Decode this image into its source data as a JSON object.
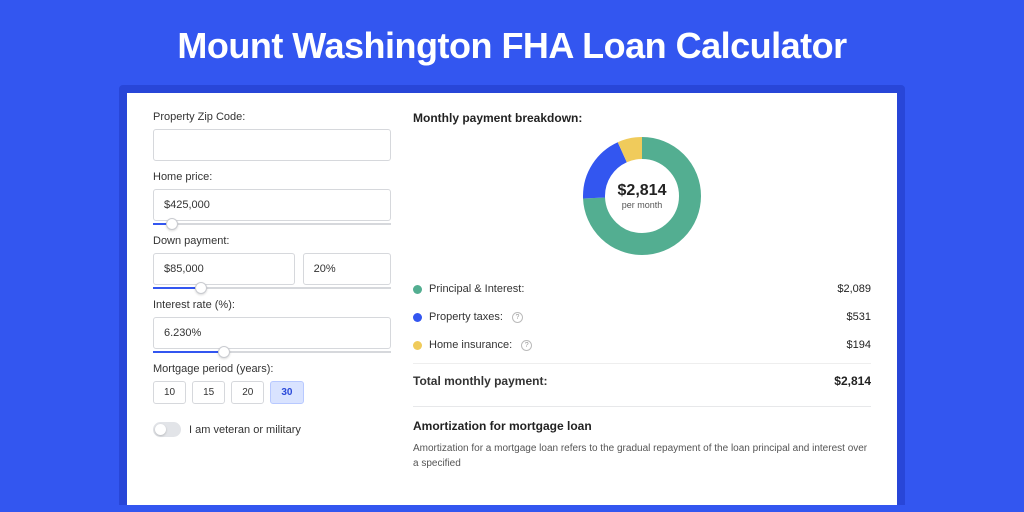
{
  "title": "Mount Washington FHA Loan Calculator",
  "colors": {
    "page_bg": "#3356f0",
    "outer_panel": "#2846d8",
    "panel_bg": "#ffffff",
    "accent": "#3356f0",
    "principal": "#53ae91",
    "taxes": "#3356f0",
    "insurance": "#f0cb5b"
  },
  "form": {
    "zip": {
      "label": "Property Zip Code:",
      "value": ""
    },
    "home_price": {
      "label": "Home price:",
      "value": "$425,000",
      "slider_pct": 8
    },
    "down_payment": {
      "label": "Down payment:",
      "amount": "$85,000",
      "percent": "20%",
      "slider_pct": 20
    },
    "interest_rate": {
      "label": "Interest rate (%):",
      "value": "6.230%",
      "slider_pct": 30
    },
    "period": {
      "label": "Mortgage period (years):",
      "options": [
        "10",
        "15",
        "20",
        "30"
      ],
      "selected": "30"
    },
    "veteran": {
      "label": "I am veteran or military",
      "checked": false
    }
  },
  "breakdown": {
    "title": "Monthly payment breakdown:",
    "center_amount": "$2,814",
    "center_sub": "per month",
    "slices": [
      {
        "label": "Principal & Interest:",
        "value": "$2,089",
        "color": "#53ae91",
        "pct": 74.2
      },
      {
        "label": "Property taxes:",
        "value": "$531",
        "color": "#3356f0",
        "pct": 18.9,
        "help": true
      },
      {
        "label": "Home insurance:",
        "value": "$194",
        "color": "#f0cb5b",
        "pct": 6.9,
        "help": true
      }
    ],
    "total_label": "Total monthly payment:",
    "total_value": "$2,814"
  },
  "amortization": {
    "title": "Amortization for mortgage loan",
    "text": "Amortization for a mortgage loan refers to the gradual repayment of the loan principal and interest over a specified"
  },
  "donut": {
    "radius": 48,
    "stroke": 22,
    "circumference": 301.59
  }
}
